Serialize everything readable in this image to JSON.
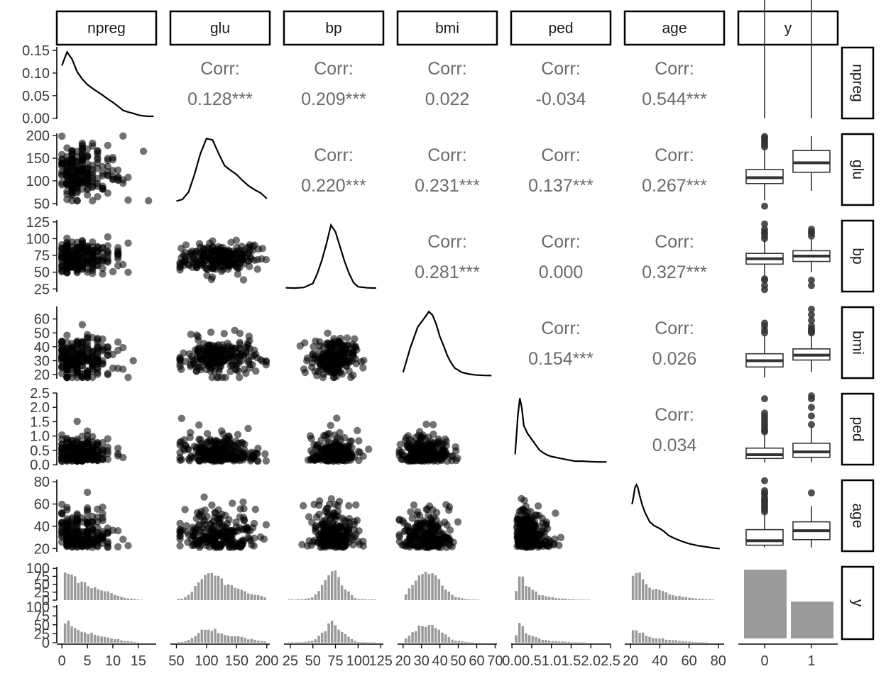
{
  "chart_data": {
    "type": "scatter-matrix",
    "variables": [
      "npreg",
      "glu",
      "bp",
      "bmi",
      "ped",
      "age",
      "y"
    ],
    "column_tick_labels": {
      "npreg": [
        "0",
        "5",
        "10",
        "15"
      ],
      "glu": [
        "50",
        "100",
        "150",
        "200"
      ],
      "bp": [
        "25",
        "50",
        "75",
        "100",
        "125"
      ],
      "bmi": [
        "20",
        "30",
        "40",
        "50",
        "60",
        "70"
      ],
      "ped": [
        "0.0",
        "0.5",
        "1.0",
        "1.5",
        "2.0",
        "2.5"
      ],
      "age": [
        "20",
        "40",
        "60",
        "80"
      ],
      "y": [
        "0",
        "1"
      ]
    },
    "column_tick_values": {
      "npreg": [
        0,
        5,
        10,
        15
      ],
      "glu": [
        50,
        100,
        150,
        200
      ],
      "bp": [
        25,
        50,
        75,
        100,
        125
      ],
      "bmi": [
        20,
        30,
        40,
        50,
        60,
        70
      ],
      "ped": [
        0.0,
        0.5,
        1.0,
        1.5,
        2.0,
        2.5
      ],
      "age": [
        20,
        40,
        60,
        80
      ]
    },
    "column_ranges": {
      "npreg": [
        -1,
        18.5
      ],
      "glu": [
        40,
        205
      ],
      "bp": [
        18,
        128
      ],
      "bmi": [
        17,
        71
      ],
      "ped": [
        -0.02,
        2.5
      ],
      "age": [
        16,
        84
      ]
    },
    "row_tick_labels": {
      "npreg": [
        "0.00",
        "0.05",
        "0.10",
        "0.15"
      ],
      "glu": [
        "50",
        "100",
        "150",
        "200"
      ],
      "bp": [
        "25",
        "50",
        "75",
        "100",
        "125"
      ],
      "bmi": [
        "20",
        "30",
        "40",
        "50",
        "60"
      ],
      "ped": [
        "0.0",
        "0.5",
        "1.0",
        "1.5",
        "2.0",
        "2.5"
      ],
      "age": [
        "20",
        "40",
        "60",
        "80"
      ],
      "y_0": [
        "0",
        "25",
        "50",
        "75",
        "100"
      ],
      "y_1": [
        "0",
        "25",
        "50",
        "75",
        "100"
      ]
    },
    "row_tick_values": {
      "npreg": [
        0,
        0.05,
        0.1,
        0.15
      ],
      "glu": [
        50,
        100,
        150,
        200
      ],
      "bp": [
        25,
        50,
        75,
        100,
        125
      ],
      "bmi": [
        20,
        30,
        40,
        50,
        60
      ],
      "ped": [
        0,
        0.5,
        1.0,
        1.5,
        2.0,
        2.5
      ],
      "age": [
        20,
        40,
        60,
        80
      ],
      "y_0": [
        0,
        25,
        50,
        75,
        100
      ],
      "y_1": [
        0,
        25,
        50,
        75,
        100
      ]
    },
    "row_ranges": {
      "npreg": [
        -0.002,
        0.158
      ],
      "glu": [
        45,
        205
      ],
      "bp": [
        20,
        128
      ],
      "bmi": [
        17,
        69
      ],
      "ped": [
        -0.02,
        2.5
      ],
      "age": [
        17,
        82
      ]
    },
    "correlations": [
      {
        "row": "npreg",
        "col": "glu",
        "label": "Corr:",
        "value": "0.128***"
      },
      {
        "row": "npreg",
        "col": "bp",
        "label": "Corr:",
        "value": "0.209***"
      },
      {
        "row": "npreg",
        "col": "bmi",
        "label": "Corr:",
        "value": "0.022"
      },
      {
        "row": "npreg",
        "col": "ped",
        "label": "Corr:",
        "value": "-0.034"
      },
      {
        "row": "npreg",
        "col": "age",
        "label": "Corr:",
        "value": "0.544***"
      },
      {
        "row": "glu",
        "col": "bp",
        "label": "Corr:",
        "value": "0.220***"
      },
      {
        "row": "glu",
        "col": "bmi",
        "label": "Corr:",
        "value": "0.231***"
      },
      {
        "row": "glu",
        "col": "ped",
        "label": "Corr:",
        "value": "0.137***"
      },
      {
        "row": "glu",
        "col": "age",
        "label": "Corr:",
        "value": "0.267***"
      },
      {
        "row": "bp",
        "col": "bmi",
        "label": "Corr:",
        "value": "0.281***"
      },
      {
        "row": "bp",
        "col": "ped",
        "label": "Corr:",
        "value": "0.000"
      },
      {
        "row": "bp",
        "col": "age",
        "label": "Corr:",
        "value": "0.327***"
      },
      {
        "row": "bmi",
        "col": "ped",
        "label": "Corr:",
        "value": "0.154***"
      },
      {
        "row": "bmi",
        "col": "age",
        "label": "Corr:",
        "value": "0.026"
      },
      {
        "row": "ped",
        "col": "age",
        "label": "Corr:",
        "value": "0.034"
      }
    ],
    "densities": {
      "npreg": {
        "x": [
          0,
          1,
          2,
          3,
          4,
          5,
          6,
          7,
          8,
          9,
          10,
          11,
          12,
          13,
          14,
          15,
          16,
          17,
          18
        ],
        "y": [
          0.12,
          0.152,
          0.135,
          0.105,
          0.088,
          0.075,
          0.066,
          0.058,
          0.05,
          0.041,
          0.033,
          0.024,
          0.014,
          0.01,
          0.007,
          0.003,
          0.001,
          0.0,
          0.0
        ]
      },
      "glu": {
        "x": [
          50,
          60,
          70,
          80,
          90,
          100,
          110,
          120,
          130,
          140,
          150,
          160,
          170,
          180,
          190,
          200
        ],
        "y": [
          0.0005,
          0.001,
          0.003,
          0.008,
          0.014,
          0.0182,
          0.0178,
          0.014,
          0.0105,
          0.0092,
          0.008,
          0.0063,
          0.0048,
          0.0037,
          0.0028,
          0.0012
        ]
      },
      "bp": {
        "x": [
          20,
          30,
          40,
          50,
          55,
          60,
          65,
          70,
          75,
          80,
          85,
          90,
          95,
          100,
          110,
          120
        ],
        "y": [
          0.0012,
          0.001,
          0.0015,
          0.0045,
          0.012,
          0.022,
          0.034,
          0.048,
          0.043,
          0.032,
          0.021,
          0.012,
          0.005,
          0.002,
          0.0012,
          0.001
        ]
      },
      "bmi": {
        "x": [
          20,
          24,
          28,
          32,
          34,
          36,
          38,
          40,
          42,
          44,
          46,
          48,
          52,
          56,
          60,
          64,
          68
        ],
        "y": [
          0.004,
          0.032,
          0.055,
          0.066,
          0.072,
          0.068,
          0.058,
          0.044,
          0.034,
          0.023,
          0.015,
          0.009,
          0.004,
          0.002,
          0.001,
          0.0006,
          0.0005
        ]
      },
      "ped": {
        "x": [
          0.08,
          0.15,
          0.2,
          0.25,
          0.3,
          0.4,
          0.5,
          0.6,
          0.7,
          0.8,
          0.9,
          1.0,
          1.2,
          1.4,
          1.6,
          1.8,
          2.0,
          2.2,
          2.4
        ],
        "y": [
          0.3,
          1.7,
          2.35,
          2.0,
          1.35,
          1.05,
          0.85,
          0.65,
          0.45,
          0.35,
          0.27,
          0.22,
          0.16,
          0.1,
          0.05,
          0.05,
          0.03,
          0.02,
          0.02
        ]
      },
      "age": {
        "x": [
          21,
          22,
          23,
          24,
          25,
          26,
          28,
          30,
          33,
          36,
          40,
          43,
          46,
          50,
          55,
          60,
          66,
          72,
          78,
          81
        ],
        "y": [
          0.046,
          0.054,
          0.063,
          0.066,
          0.063,
          0.056,
          0.045,
          0.037,
          0.028,
          0.024,
          0.021,
          0.018,
          0.014,
          0.011,
          0.008,
          0.0055,
          0.0035,
          0.0022,
          0.0008,
          0.0005
        ]
      }
    },
    "boxplots": {
      "npreg": {
        "0": {
          "q1": 0.5,
          "median": 2,
          "q3": 4,
          "lo": 0,
          "hi": 9,
          "outliers": [
            10,
            10.5,
            11,
            11.5,
            12,
            13
          ]
        },
        "1": {
          "q1": 1.5,
          "median": 4,
          "q3": 7.5,
          "lo": 0,
          "hi": 15,
          "outliers": []
        }
      },
      "glu": {
        "0": {
          "q1": 94,
          "median": 107,
          "q3": 125,
          "lo": 57,
          "hi": 173,
          "outliers": [
            175,
            180,
            185,
            190,
            195,
            198,
            44
          ]
        },
        "1": {
          "q1": 119,
          "median": 140,
          "q3": 167,
          "lo": 78,
          "hi": 199,
          "outliers": []
        }
      },
      "bp": {
        "0": {
          "q1": 62,
          "median": 70,
          "q3": 78,
          "lo": 44,
          "hi": 98,
          "outliers": [
            24,
            30,
            38,
            40,
            100,
            104,
            108,
            110,
            114,
            122
          ]
        },
        "1": {
          "q1": 66,
          "median": 74,
          "q3": 82,
          "lo": 50,
          "hi": 100,
          "outliers": [
            30,
            38,
            104,
            108,
            110,
            114
          ]
        }
      },
      "bmi": {
        "0": {
          "q1": 25.5,
          "median": 30,
          "q3": 35,
          "lo": 18,
          "hi": 48,
          "outliers": [
            50,
            52,
            55,
            57
          ]
        },
        "1": {
          "q1": 30.5,
          "median": 34,
          "q3": 38.5,
          "lo": 22,
          "hi": 48,
          "outliers": [
            50,
            51,
            52,
            53,
            55,
            59,
            63,
            67
          ]
        }
      },
      "ped": {
        "0": {
          "q1": 0.22,
          "median": 0.35,
          "q3": 0.58,
          "lo": 0.08,
          "hi": 1.1,
          "outliers": [
            1.15,
            1.2,
            1.3,
            1.4,
            1.5,
            1.6,
            1.7,
            1.8,
            2.3
          ]
        },
        "1": {
          "q1": 0.26,
          "median": 0.45,
          "q3": 0.75,
          "lo": 0.09,
          "hi": 1.35,
          "outliers": [
            1.4,
            1.7,
            2.0,
            2.3,
            2.4
          ]
        }
      },
      "age": {
        "0": {
          "q1": 23,
          "median": 27,
          "q3": 37,
          "lo": 21,
          "hi": 52,
          "outliers": [
            53,
            55,
            57,
            58,
            60,
            62,
            63,
            64,
            66,
            69,
            70,
            72,
            81
          ]
        },
        "1": {
          "q1": 28,
          "median": 36,
          "q3": 44,
          "lo": 21,
          "hi": 58,
          "outliers": [
            70
          ]
        }
      }
    },
    "y_counts": {
      "categories": [
        "0",
        "1"
      ],
      "values": [
        500,
        268
      ]
    },
    "scatter_seed": 12345
  }
}
